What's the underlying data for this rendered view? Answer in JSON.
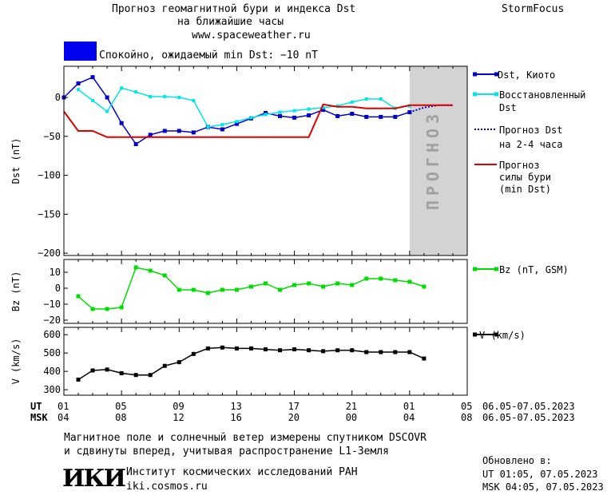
{
  "header": {
    "title_line1": "Прогноз геомагнитной бури и индекса Dst",
    "title_line2": "на ближайшие часы",
    "url": "www.spaceweather.ru",
    "brand": "StormFocus",
    "status_text": "Спокойно, ожидаемый min Dst: −10 nT",
    "status_color": "#0000ee"
  },
  "colors": {
    "dst_kyoto": "#0000cc",
    "dst_restored": "#00e5e5",
    "dst_forecast": "#0000cc",
    "storm_forecast": "#dd0000",
    "bz": "#00dd00",
    "v": "#000000",
    "forecast_zone": "#d3d3d3",
    "forecast_text": "#a0a0a0"
  },
  "legend": {
    "dst_kyoto": "Dst, Киото",
    "dst_restored_1": "Восстановленный",
    "dst_restored_2": "Dst",
    "dst_forecast_1": "Прогноз Dst",
    "dst_forecast_2": "на 2-4 часа",
    "storm_1": "Прогноз",
    "storm_2": "силы бури",
    "storm_3": "(min Dst)",
    "bz": "Bz (nT, GSM)",
    "v": "V (km/s)"
  },
  "forecast_label": "ПРОГНОЗ",
  "time_axis": {
    "ut_label": "UT",
    "msk_label": "MSK",
    "ut_ticks": [
      "01",
      "05",
      "09",
      "13",
      "17",
      "21",
      "01",
      "05"
    ],
    "msk_ticks": [
      "04",
      "08",
      "12",
      "16",
      "20",
      "00",
      "04",
      "08"
    ],
    "range_ut": "06.05-07.05.2023",
    "range_msk": "06.05-07.05.2023"
  },
  "footer": {
    "note_line1": "Магнитное поле и солнечный ветер измерены спутником DSCOVR",
    "note_line2": "и сдвинуты вперед, учитывая распространение L1-Земля",
    "updated_label": "Обновлено в:",
    "updated_ut": "UT  01:05, 07.05.2023",
    "updated_msk": "MSK 04:05, 07.05.2023",
    "logo_text": "ИКИ",
    "institute": "Институт космических исследований РАН",
    "institute_url": "iki.cosmos.ru"
  },
  "chart_data": [
    {
      "type": "line",
      "ylabel": "Dst (nT)",
      "ylim": [
        -203,
        40
      ],
      "yticks": [
        0,
        -50,
        -100,
        -150,
        -200
      ],
      "xlim": [
        0,
        28
      ],
      "forecast_start": 24,
      "series": [
        {
          "name": "Dst, Киото",
          "key": "dst_kyoto",
          "x": [
            0,
            1,
            2,
            3,
            4,
            5,
            6,
            7,
            8,
            9,
            10,
            11,
            12,
            13,
            14,
            15,
            16,
            17,
            18,
            19,
            20,
            21,
            22,
            23,
            24
          ],
          "y": [
            0,
            18,
            26,
            0,
            -33,
            -60,
            -48,
            -43,
            -43,
            -45,
            -38,
            -41,
            -34,
            -27,
            -20,
            -24,
            -26,
            -23,
            -16,
            -24,
            -21,
            -25,
            -25,
            -25,
            -19
          ]
        },
        {
          "name": "Восстановленный Dst",
          "key": "dst_restored",
          "x": [
            1,
            2,
            3,
            4,
            5,
            6,
            7,
            8,
            9,
            10,
            11,
            12,
            13,
            14,
            15,
            16,
            17,
            18,
            19,
            20,
            21,
            22,
            23,
            24
          ],
          "y": [
            10,
            -4,
            -18,
            12,
            7,
            1,
            1,
            0,
            -4,
            -38,
            -35,
            -31,
            -26,
            -22,
            -19,
            -17,
            -15,
            -13,
            -11,
            -6,
            -2,
            -2,
            -14,
            -11
          ]
        },
        {
          "name": "Прогноз Dst на 2-4 часа",
          "key": "dst_forecast",
          "x": [
            24,
            25,
            26,
            27
          ],
          "y": [
            -19,
            -13,
            -10,
            -10
          ]
        },
        {
          "name": "Прогноз силы бури (min Dst)",
          "key": "storm_forecast",
          "x": [
            0,
            1,
            2,
            3,
            4,
            5,
            6,
            7,
            8,
            9,
            10,
            11,
            12,
            13,
            14,
            15,
            16,
            17,
            18,
            19,
            20,
            21,
            22,
            23,
            24,
            25,
            26,
            27
          ],
          "y": [
            -18,
            -43,
            -43,
            -51,
            -51,
            -51,
            -51,
            -51,
            -51,
            -51,
            -51,
            -51,
            -51,
            -51,
            -51,
            -51,
            -51,
            -51,
            -9,
            -12,
            -12,
            -14,
            -14,
            -14,
            -10,
            -10,
            -10,
            -10
          ]
        }
      ]
    },
    {
      "type": "line",
      "ylabel": "Bz (nT)",
      "ylim": [
        -22,
        18
      ],
      "yticks": [
        10,
        0,
        -10,
        -20
      ],
      "xlim": [
        0,
        28
      ],
      "series": [
        {
          "name": "Bz (nT, GSM)",
          "key": "bz",
          "x": [
            1,
            2,
            3,
            4,
            5,
            6,
            7,
            8,
            9,
            10,
            11,
            12,
            13,
            14,
            15,
            16,
            17,
            18,
            19,
            20,
            21,
            22,
            23,
            24,
            25
          ],
          "y": [
            -5,
            -13,
            -13,
            -12,
            13,
            11,
            8,
            -1,
            -1,
            -3,
            -1,
            -1,
            1,
            3,
            -1,
            2,
            3,
            1,
            3,
            2,
            6,
            6,
            5,
            4,
            1
          ]
        }
      ]
    },
    {
      "type": "line",
      "ylabel": "V (km/s)",
      "ylim": [
        270,
        640
      ],
      "yticks": [
        600,
        500,
        400,
        300
      ],
      "xlim": [
        0,
        28
      ],
      "series": [
        {
          "name": "V (km/s)",
          "key": "v",
          "x": [
            1,
            2,
            3,
            4,
            5,
            6,
            7,
            8,
            9,
            10,
            11,
            12,
            13,
            14,
            15,
            16,
            17,
            18,
            19,
            20,
            21,
            22,
            23,
            24,
            25
          ],
          "y": [
            355,
            405,
            410,
            390,
            380,
            380,
            430,
            450,
            495,
            525,
            530,
            525,
            525,
            520,
            515,
            520,
            515,
            510,
            515,
            515,
            505,
            505,
            505,
            505,
            470
          ]
        }
      ]
    }
  ]
}
